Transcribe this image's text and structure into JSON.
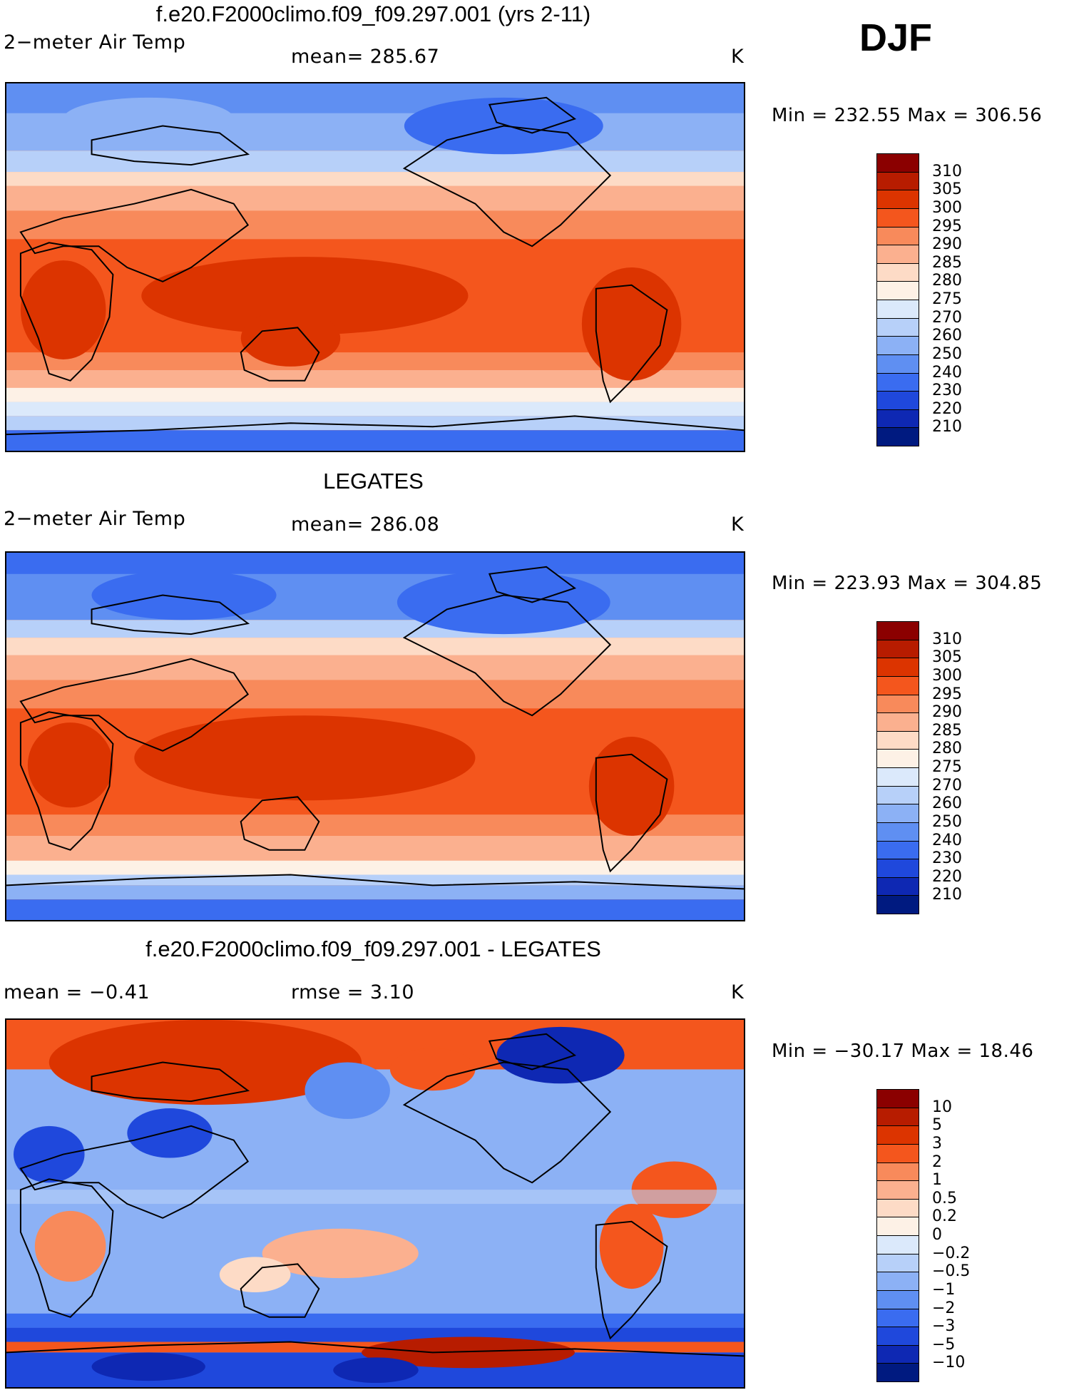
{
  "season": "DJF",
  "panels": [
    {
      "title": "f.e20.F2000climo.f09_f09.297.001 (yrs 2-11)",
      "left_label": "2−meter Air Temp",
      "center_label": "mean=  285.67",
      "unit": "K",
      "minmax": "Min  =  232.55  Max  =  306.56",
      "levels": [
        "310",
        "305",
        "300",
        "295",
        "290",
        "285",
        "280",
        "275",
        "270",
        "260",
        "250",
        "240",
        "230",
        "220",
        "210"
      ],
      "colors": [
        "#8b0000",
        "#b71c00",
        "#dc3400",
        "#f4561d",
        "#f88a5b",
        "#fbb08f",
        "#fddbc6",
        "#fdf1e6",
        "#dbe9fb",
        "#b7d0f9",
        "#8cb1f5",
        "#5f8ff2",
        "#3a6cf0",
        "#1f48dc",
        "#0e28b3",
        "#001a80"
      ]
    },
    {
      "title": "LEGATES",
      "left_label": "2−meter Air Temp",
      "center_label": "mean=  286.08",
      "unit": "K",
      "minmax": "Min  =  223.93  Max  =  304.85",
      "levels": [
        "310",
        "305",
        "300",
        "295",
        "290",
        "285",
        "280",
        "275",
        "270",
        "260",
        "250",
        "240",
        "230",
        "220",
        "210"
      ],
      "colors": [
        "#8b0000",
        "#b71c00",
        "#dc3400",
        "#f4561d",
        "#f88a5b",
        "#fbb08f",
        "#fddbc6",
        "#fdf1e6",
        "#dbe9fb",
        "#b7d0f9",
        "#8cb1f5",
        "#5f8ff2",
        "#3a6cf0",
        "#1f48dc",
        "#0e28b3",
        "#001a80"
      ]
    },
    {
      "title": "f.e20.F2000climo.f09_f09.297.001 - LEGATES",
      "left_label": "mean  =    −0.41",
      "center_label": "rmse  =     3.10",
      "unit": "K",
      "minmax": "Min  =  −30.17  Max  =    18.46",
      "levels": [
        "10",
        "5",
        "3",
        "2",
        "1",
        "0.5",
        "0.2",
        "0",
        "−0.2",
        "−0.5",
        "−1",
        "−2",
        "−3",
        "−5",
        "−10"
      ],
      "colors": [
        "#8b0000",
        "#b71c00",
        "#dc3400",
        "#f4561d",
        "#f88a5b",
        "#fbb08f",
        "#fddbc6",
        "#fdf1e6",
        "#dbe9fb",
        "#b7d0f9",
        "#8cb1f5",
        "#5f8ff2",
        "#3a6cf0",
        "#1f48dc",
        "#0e28b3",
        "#001a80"
      ]
    }
  ]
}
